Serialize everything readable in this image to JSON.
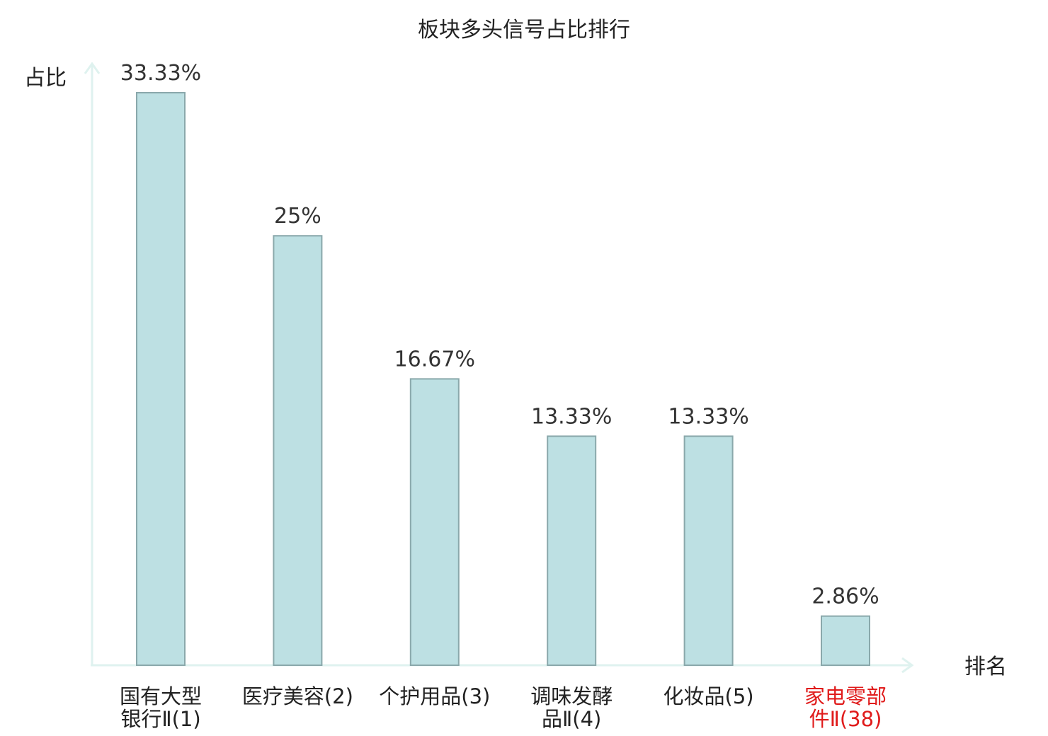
{
  "chart_data": {
    "type": "bar",
    "title": "板块多头信号占比排行",
    "ylabel": "占比",
    "xlabel": "排名",
    "ylim": [
      0,
      33.33
    ],
    "grid": false,
    "categories": [
      [
        "国有大型",
        "银行Ⅱ(1)"
      ],
      [
        "医疗美容(2)"
      ],
      [
        "个护用品(3)"
      ],
      [
        "调味发酵",
        "品Ⅱ(4)"
      ],
      [
        "化妆品(5)"
      ],
      [
        "家电零部",
        "件Ⅱ(38)"
      ]
    ],
    "values": [
      33.33,
      25,
      16.67,
      13.33,
      13.33,
      2.86
    ],
    "value_labels": [
      "33.33%",
      "25%",
      "16.67%",
      "13.33%",
      "13.33%",
      "2.86%"
    ],
    "highlight_index": 5,
    "colors": {
      "bar_fill": "#bde0e3",
      "bar_stroke": "#8aa8ab",
      "axis": "#dff2ef",
      "label": "#222222",
      "highlight": "#e01b1b"
    }
  }
}
